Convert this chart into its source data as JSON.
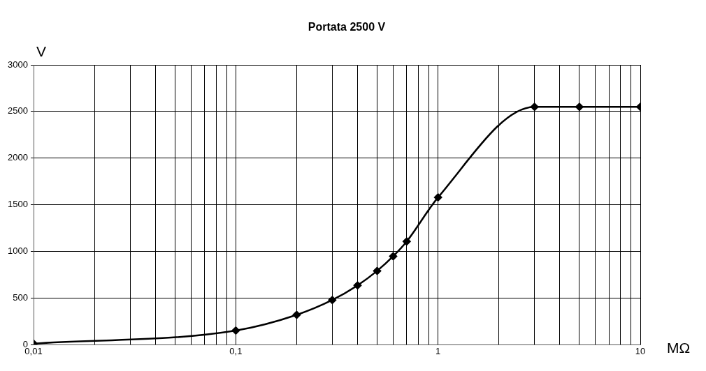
{
  "chart_data": {
    "type": "line",
    "title": "Portata 2500 V",
    "xlabel": "MΩ",
    "ylabel": "V",
    "log": "x",
    "grid": true,
    "marker": "diamond",
    "line_style": "solid",
    "legend": false,
    "x": [
      0.01,
      0.1,
      0.2,
      0.3,
      0.4,
      0.5,
      0.6,
      0.7,
      1,
      3,
      5,
      10
    ],
    "series": [
      {
        "color": "#000000",
        "values": [
          10,
          150,
          318,
          477,
          634,
          790,
          947,
          1106,
          1578,
          2550,
          2550,
          2550
        ]
      }
    ],
    "xlim": [
      0.01,
      10
    ],
    "xticks": [
      {
        "value": 0.01,
        "label": "0,01"
      },
      {
        "value": 0.02,
        "label": null
      },
      {
        "value": 0.03,
        "label": null
      },
      {
        "value": 0.04,
        "label": null
      },
      {
        "value": 0.05,
        "label": null
      },
      {
        "value": 0.06,
        "label": null
      },
      {
        "value": 0.07,
        "label": null
      },
      {
        "value": 0.08,
        "label": null
      },
      {
        "value": 0.09,
        "label": null
      },
      {
        "value": 0.1,
        "label": "0,1"
      },
      {
        "value": 0.2,
        "label": null
      },
      {
        "value": 0.3,
        "label": null
      },
      {
        "value": 0.4,
        "label": null
      },
      {
        "value": 0.5,
        "label": null
      },
      {
        "value": 0.6,
        "label": null
      },
      {
        "value": 0.7,
        "label": null
      },
      {
        "value": 0.8,
        "label": null
      },
      {
        "value": 0.9,
        "label": null
      },
      {
        "value": 1,
        "label": "1"
      },
      {
        "value": 2,
        "label": null
      },
      {
        "value": 3,
        "label": null
      },
      {
        "value": 4,
        "label": null
      },
      {
        "value": 5,
        "label": null
      },
      {
        "value": 6,
        "label": null
      },
      {
        "value": 7,
        "label": null
      },
      {
        "value": 8,
        "label": null
      },
      {
        "value": 9,
        "label": null
      },
      {
        "value": 10,
        "label": "10"
      }
    ],
    "ylim": [
      0,
      3000
    ],
    "yticks": [
      0,
      500,
      1000,
      1500,
      2000,
      2500,
      3000
    ]
  }
}
